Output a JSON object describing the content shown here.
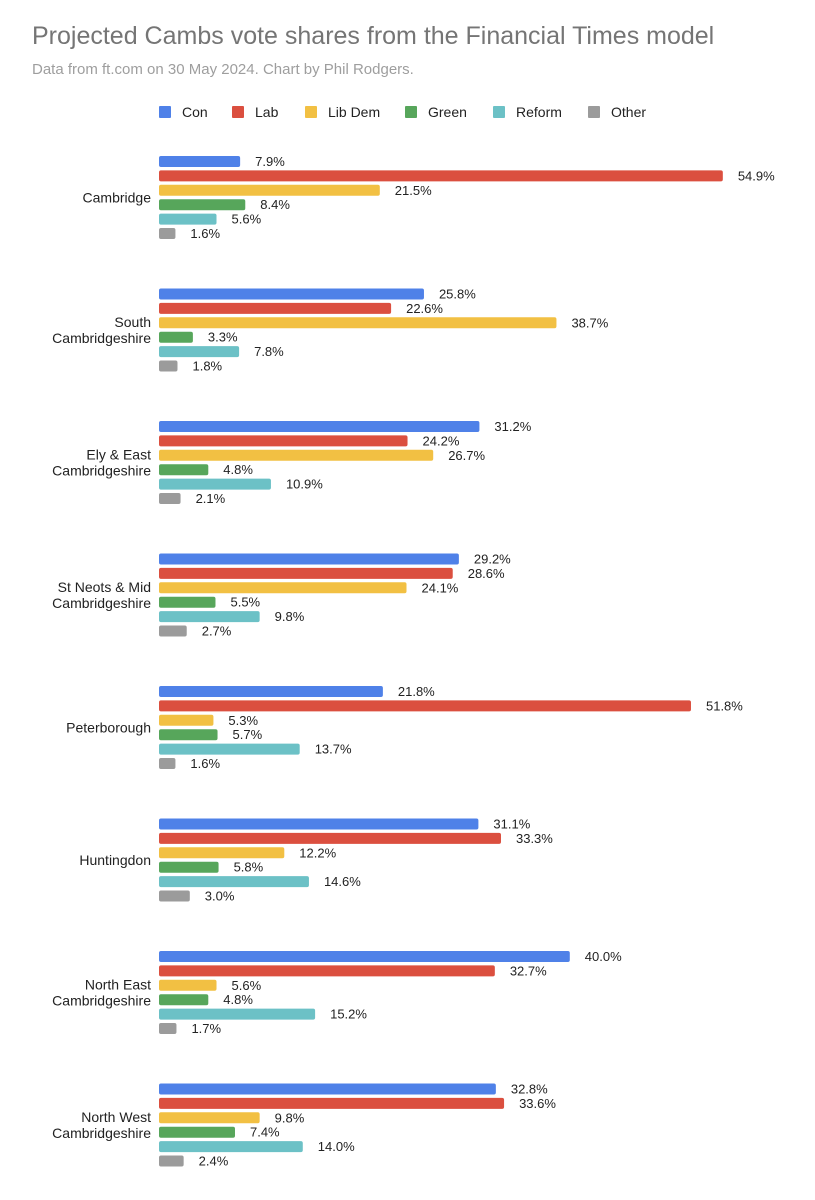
{
  "title": "Projected Cambs vote shares from the Financial Times model",
  "subtitle": "Data from ft.com on 30 May 2024. Chart by Phil Rodgers.",
  "chart_data": {
    "type": "bar",
    "orientation": "horizontal",
    "title": "Projected Cambs vote shares from the Financial Times model",
    "subtitle": "Data from ft.com on 30 May 2024. Chart by Phil Rodgers.",
    "legend_position": "top",
    "grid": false,
    "categories": [
      [
        "Cambridge"
      ],
      [
        "South",
        "Cambridgeshire"
      ],
      [
        "Ely & East",
        "Cambridgeshire"
      ],
      [
        "St Neots & Mid",
        "Cambridgeshire"
      ],
      [
        "Peterborough"
      ],
      [
        "Huntingdon"
      ],
      [
        "North East",
        "Cambridgeshire"
      ],
      [
        "North West",
        "Cambridgeshire"
      ]
    ],
    "series": [
      {
        "name": "Con",
        "color": "#4f81e8",
        "values": [
          7.9,
          25.8,
          31.2,
          29.2,
          21.8,
          31.1,
          40.0,
          32.8
        ],
        "labels": [
          "7.9%",
          "25.8%",
          "31.2%",
          "29.2%",
          "21.8%",
          "31.1%",
          "40.0%",
          "32.8%"
        ]
      },
      {
        "name": "Lab",
        "color": "#db4f3f",
        "values": [
          54.9,
          22.6,
          24.2,
          28.6,
          51.8,
          33.3,
          32.7,
          33.6
        ],
        "labels": [
          "54.9%",
          "22.6%",
          "24.2%",
          "28.6%",
          "51.8%",
          "33.3%",
          "32.7%",
          "33.6%"
        ]
      },
      {
        "name": "Lib Dem",
        "color": "#f2c043",
        "values": [
          21.5,
          38.7,
          26.7,
          24.1,
          5.3,
          12.2,
          5.6,
          9.8
        ],
        "labels": [
          "21.5%",
          "38.7%",
          "26.7%",
          "24.1%",
          "5.3%",
          "12.2%",
          "5.6%",
          "9.8%"
        ]
      },
      {
        "name": "Green",
        "color": "#57a65b",
        "values": [
          8.4,
          3.3,
          4.8,
          5.5,
          5.7,
          5.8,
          4.8,
          7.4
        ],
        "labels": [
          "8.4%",
          "3.3%",
          "4.8%",
          "5.5%",
          "5.7%",
          "5.8%",
          "4.8%",
          "7.4%"
        ]
      },
      {
        "name": "Reform",
        "color": "#6cc1c6",
        "values": [
          5.6,
          7.8,
          10.9,
          9.8,
          13.7,
          14.6,
          15.2,
          14.0
        ],
        "labels": [
          "5.6%",
          "7.8%",
          "10.9%",
          "9.8%",
          "13.7%",
          "14.6%",
          "15.2%",
          "14.0%"
        ]
      },
      {
        "name": "Other",
        "color": "#9b9b9b",
        "values": [
          1.6,
          1.8,
          2.1,
          2.7,
          1.6,
          3.0,
          1.7,
          2.4
        ],
        "labels": [
          "1.6%",
          "1.8%",
          "2.1%",
          "2.7%",
          "1.6%",
          "3.0%",
          "1.7%",
          "2.4%"
        ]
      }
    ]
  }
}
